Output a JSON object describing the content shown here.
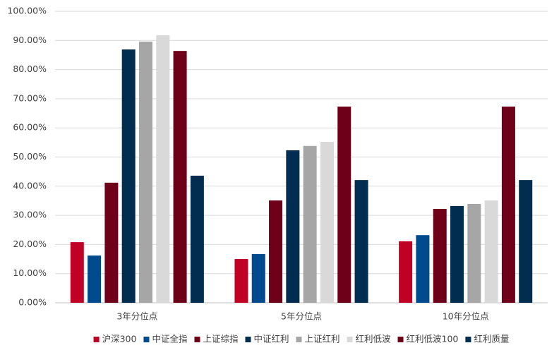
{
  "chart_data": {
    "type": "bar",
    "categories": [
      "3年分位点",
      "5年分位点",
      "10年分位点"
    ],
    "series": [
      {
        "name": "沪深300",
        "color": "#c00025",
        "values": [
          20.8,
          15.0,
          21.1
        ]
      },
      {
        "name": "中证全指",
        "color": "#004a8d",
        "values": [
          16.2,
          16.7,
          23.2
        ]
      },
      {
        "name": "上证综指",
        "color": "#6e0019",
        "values": [
          41.2,
          35.1,
          32.2
        ]
      },
      {
        "name": "中证红利",
        "color": "#002d50",
        "values": [
          86.9,
          52.3,
          33.2
        ]
      },
      {
        "name": "上证红利",
        "color": "#a6a6a6",
        "values": [
          89.6,
          53.8,
          33.9
        ]
      },
      {
        "name": "红利低波",
        "color": "#d9d9d9",
        "values": [
          91.8,
          55.2,
          35.1
        ]
      },
      {
        "name": "红利低波100",
        "color": "#6e0019",
        "values": [
          86.4,
          67.3,
          67.3
        ]
      },
      {
        "name": "红利质量",
        "color": "#002d50",
        "values": [
          43.6,
          42.1,
          42.1
        ]
      }
    ],
    "ylim": [
      0,
      100
    ],
    "yticks": [
      {
        "value": 0,
        "label": "0.00%"
      },
      {
        "value": 10,
        "label": "10.00%"
      },
      {
        "value": 20,
        "label": "20.00%"
      },
      {
        "value": 30,
        "label": "30.00%"
      },
      {
        "value": 40,
        "label": "40.00%"
      },
      {
        "value": 50,
        "label": "50.00%"
      },
      {
        "value": 60,
        "label": "60.00%"
      },
      {
        "value": 70,
        "label": "70.00%"
      },
      {
        "value": 80,
        "label": "80.00%"
      },
      {
        "value": 90,
        "label": "90.00%"
      },
      {
        "value": 100,
        "label": "100.00%"
      }
    ],
    "grid": true,
    "legend": "bottom"
  }
}
